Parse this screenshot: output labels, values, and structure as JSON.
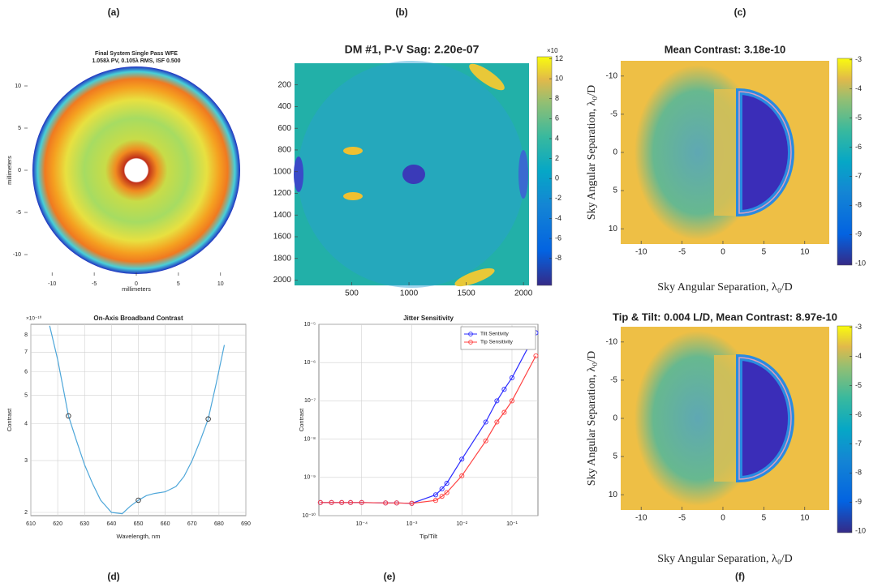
{
  "chart_data": [
    {
      "label": "(a)",
      "type": "heatmap",
      "title": "Final System Single Pass WFE",
      "subtitle": "1.058λ PV, 0.105λ RMS, ISF 0.500",
      "xlabel": "millimeters",
      "ylabel": "millimeters",
      "xlim": [
        -13.3,
        13.3
      ],
      "ylim": [
        -12.5,
        12.5
      ],
      "xticks": [
        -10,
        -5,
        0,
        5,
        10
      ],
      "yticks": [
        -10,
        -5,
        0,
        5,
        10
      ]
    },
    {
      "label": "(b)",
      "type": "heatmap",
      "title": "DM #1, P-V Sag: 2.20e-07",
      "xlim": [
        0.5,
        2048.5
      ],
      "ylim": [
        2048.5,
        0.5
      ],
      "xticks": [
        500,
        1000,
        1500,
        2000
      ],
      "yticks": [
        200,
        400,
        600,
        800,
        1000,
        1200,
        1400,
        1600,
        1800,
        2000
      ],
      "colorbar": {
        "lim": [
          -10.7,
          12.2
        ],
        "ticks": [
          -8,
          -6,
          -4,
          -2,
          0,
          2,
          4,
          6,
          8,
          10,
          12
        ],
        "exponent_label": "×10"
      }
    },
    {
      "label": "(c)",
      "type": "heatmap",
      "title": "Mean Contrast: 3.18e-10",
      "xlabel": "Sky Angular Separation, λ₀/D",
      "ylabel": "Sky Angular Separation, λ₀/D",
      "xlim": [
        -12.5,
        13
      ],
      "ylim": [
        12,
        -12
      ],
      "xticks": [
        -10,
        -5,
        0,
        5,
        10
      ],
      "yticks": [
        -10,
        -5,
        0,
        5,
        10
      ],
      "colorbar": {
        "lim": [
          -10.05,
          -2.95
        ],
        "ticks": [
          -10,
          -9,
          -8,
          -7,
          -6,
          -5,
          -4,
          -3
        ]
      }
    },
    {
      "label": "(d)",
      "type": "line",
      "title": "On-Axis Broadband Contrast",
      "xlabel": "Wavelength, nm",
      "ylabel": "Contrast",
      "exponent_label": "×10⁻¹⁰",
      "ylog": true,
      "grid": true,
      "color": "#4da6d9",
      "xlim": [
        610,
        690
      ],
      "ylim": [
        1.95e-10,
        8.7e-10
      ],
      "xticks": [
        610,
        620,
        630,
        640,
        650,
        660,
        670,
        680,
        690
      ],
      "yticks": [
        {
          "value": 2e-10,
          "label": "2"
        },
        {
          "value": 3e-10,
          "label": "3"
        },
        {
          "value": 4e-10,
          "label": "4"
        },
        {
          "value": 5e-10,
          "label": "5"
        },
        {
          "value": 6e-10,
          "label": "6"
        },
        {
          "value": 7e-10,
          "label": "7"
        },
        {
          "value": 8e-10,
          "label": "8"
        }
      ],
      "x": [
        617,
        620,
        622,
        624,
        627,
        630,
        633,
        636,
        640,
        644,
        647,
        650,
        653,
        656,
        660,
        664,
        667,
        670,
        673,
        676,
        679,
        682
      ],
      "values": [
        8.6e-10,
        6.6e-10,
        5.3e-10,
        4.25e-10,
        3.5e-10,
        2.9e-10,
        2.5e-10,
        2.2e-10,
        2e-10,
        1.98e-10,
        2.1e-10,
        2.2e-10,
        2.28e-10,
        2.32e-10,
        2.35e-10,
        2.45e-10,
        2.65e-10,
        3e-10,
        3.5e-10,
        4.15e-10,
        5.5e-10,
        7.4e-10
      ],
      "markers": {
        "x": [
          624,
          650,
          676
        ],
        "values": [
          4.25e-10,
          2.2e-10,
          4.15e-10
        ]
      }
    },
    {
      "label": "(e)",
      "type": "line",
      "title": "Jitter Sensitivity",
      "xlabel": "Tip/Tilt",
      "ylabel": "Contrast",
      "xlog": true,
      "ylog": true,
      "grid": true,
      "legend": "upper right",
      "xlim": [
        1.4e-05,
        0.33
      ],
      "ylim": [
        1e-10,
        1e-05
      ],
      "xticks": [
        {
          "value": 0.0001,
          "label": "10⁻⁴"
        },
        {
          "value": 0.001,
          "label": "10⁻³"
        },
        {
          "value": 0.01,
          "label": "10⁻²"
        },
        {
          "value": 0.1,
          "label": "10⁻¹"
        }
      ],
      "yticks": [
        {
          "value": 1e-10,
          "label": "10⁻¹⁰"
        },
        {
          "value": 1e-09,
          "label": "10⁻⁹"
        },
        {
          "value": 1e-08,
          "label": "10⁻⁸"
        },
        {
          "value": 1e-07,
          "label": "10⁻⁷"
        },
        {
          "value": 1e-06,
          "label": "10⁻⁶"
        },
        {
          "value": 1e-05,
          "label": "10⁻⁵"
        }
      ],
      "x": [
        1.5e-05,
        2.5e-05,
        4e-05,
        6e-05,
        0.0001,
        0.0003,
        0.0005,
        0.001,
        0.003,
        0.004,
        0.005,
        0.01,
        0.03,
        0.05,
        0.07,
        0.1,
        0.3
      ],
      "series": [
        {
          "name": "Tilt Sentivity",
          "color": "#2b2bff",
          "values": [
            2.2e-10,
            2.2e-10,
            2.2e-10,
            2.2e-10,
            2.2e-10,
            2.15e-10,
            2.15e-10,
            2.1e-10,
            3.5e-10,
            5e-10,
            7e-10,
            3e-09,
            2.8e-08,
            1e-07,
            2e-07,
            4e-07,
            6e-06
          ]
        },
        {
          "name": "Tip Sensitivity",
          "color": "#ff4040",
          "values": [
            2.2e-10,
            2.2e-10,
            2.2e-10,
            2.2e-10,
            2.2e-10,
            2.15e-10,
            2.15e-10,
            2.1e-10,
            2.5e-10,
            3.2e-10,
            4e-10,
            1.1e-09,
            9e-09,
            2.8e-08,
            5e-08,
            1e-07,
            1.5e-06
          ]
        }
      ]
    },
    {
      "label": "(f)",
      "type": "heatmap",
      "title": "Tip & Tilt: 0.004 L/D, Mean Contrast: 8.97e-10",
      "xlabel": "Sky Angular Separation, λ₀/D",
      "ylabel": "Sky Angular Separation, λ₀/D",
      "xlim": [
        -12.5,
        13
      ],
      "ylim": [
        12,
        -12
      ],
      "xticks": [
        -10,
        -5,
        0,
        5,
        10
      ],
      "yticks": [
        -10,
        -5,
        0,
        5,
        10
      ],
      "colorbar": {
        "lim": [
          -10.05,
          -2.95
        ],
        "ticks": [
          -10,
          -9,
          -8,
          -7,
          -6,
          -5,
          -4,
          -3
        ]
      }
    }
  ]
}
